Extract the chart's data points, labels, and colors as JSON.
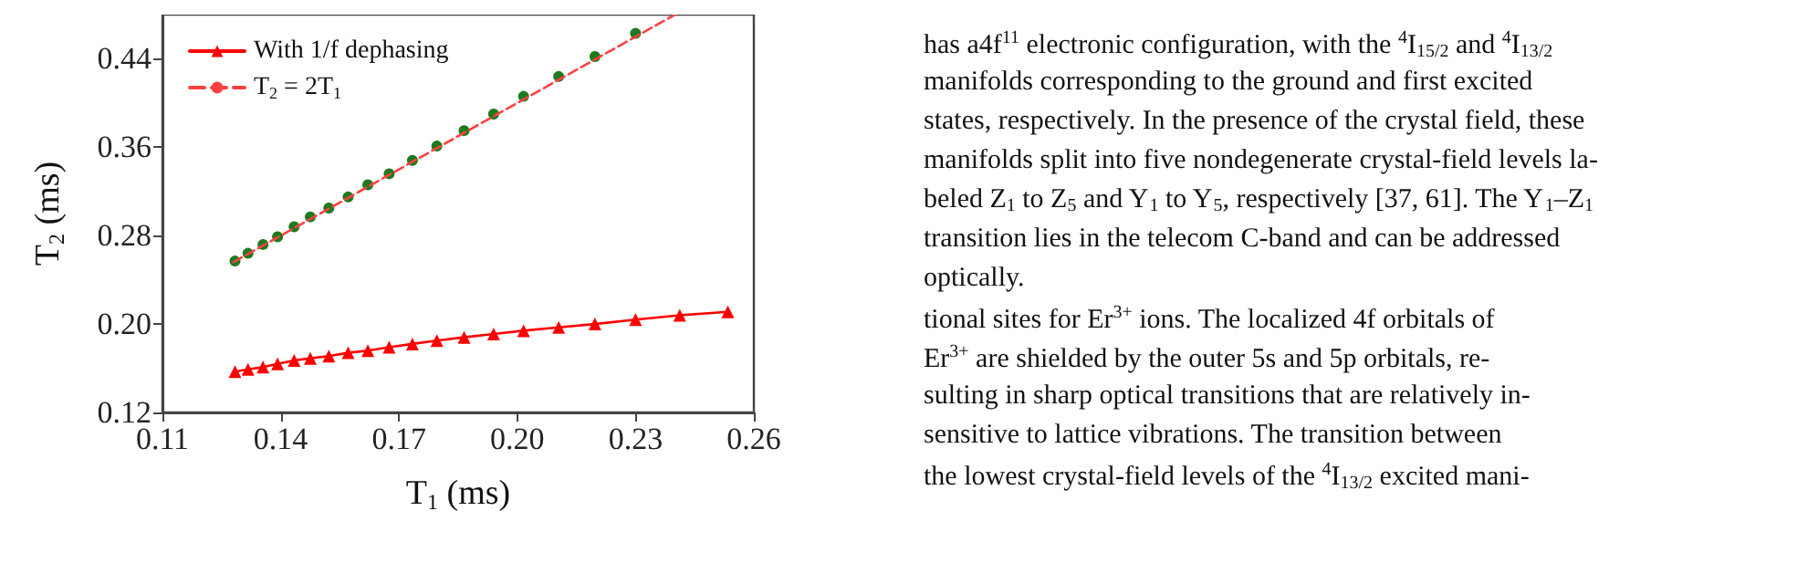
{
  "chart_data": {
    "type": "line",
    "xlabel": "T$_{1}$ (ms)",
    "ylabel": "T$_{2}$ (ms)",
    "xlim": [
      0.11,
      0.26
    ],
    "xticks": [
      0.11,
      0.14,
      0.17,
      {
        "value": 0.2,
        "label": "0.20"
      },
      0.23,
      0.26
    ],
    "ylim": [
      0.12,
      0.48
    ],
    "yticks": [
      0.12,
      {
        "value": 0.2,
        "label": "0.20"
      },
      0.28,
      0.36,
      0.44
    ],
    "grid": false,
    "legend": "top left",
    "series": [
      {
        "name": "With 1/f dephasing",
        "type": "line",
        "color": "#ff0000",
        "marker": "triangle",
        "line_style": "solid",
        "x": [
          0.1284,
          0.1317,
          0.1355,
          0.1392,
          0.1434,
          0.1475,
          0.1522,
          0.1571,
          0.1621,
          0.1675,
          0.1734,
          0.1796,
          0.1865,
          0.194,
          0.2016,
          0.2105,
          0.2197,
          0.23,
          0.2412,
          0.2534
        ],
        "values": [
          0.157,
          0.159,
          0.161,
          0.164,
          0.167,
          0.169,
          0.171,
          0.174,
          0.176,
          0.179,
          0.182,
          0.185,
          0.188,
          0.191,
          0.194,
          0.197,
          0.2,
          0.204,
          0.208,
          0.211
        ]
      },
      {
        "name": "T$_{2}$ = 2T$_{1}$",
        "type": "line",
        "color": "#ff4040",
        "marker": "none",
        "line_style": "dashed",
        "x": [
          0.128,
          0.24
        ],
        "values": [
          0.256,
          0.48
        ]
      },
      {
        "type": "scatter",
        "color": "#1f7a1f",
        "marker": "circle",
        "x": [
          0.1284,
          0.1317,
          0.1355,
          0.1392,
          0.1434,
          0.1475,
          0.1522,
          0.1571,
          0.1621,
          0.1675,
          0.1734,
          0.1796,
          0.1865,
          0.194,
          0.2016,
          0.2105,
          0.2197,
          0.23
        ],
        "values": [
          0.257,
          0.264,
          0.272,
          0.279,
          0.288,
          0.297,
          0.305,
          0.315,
          0.326,
          0.336,
          0.348,
          0.361,
          0.375,
          0.39,
          0.406,
          0.424,
          0.442,
          0.463
        ]
      }
    ],
    "annotations": [
      "has a4f$^{11}$ electronic configuration, with the $^{4}$I$_{15/2}$ and $^{4}$I$_{13/2}$",
      "manifolds corresponding to the ground and first excited",
      "states, respectively. In the presence of the crystal field, these",
      "manifolds split into five nondegenerate crystal-field levels la-",
      "beled Z$_{1}$ to Z$_{5}$ and Y$_{1}$ to Y$_{5}$, respectively [37, 61]. The Y$_{1}$–Z$_{1}$",
      "transition lies in the telecom C-band and can be addressed",
      "optically.",
      "tional sites for Er$^{3+}$ ions. The localized 4f orbitals of",
      "Er$^{3+}$ are shielded by the outer 5s and 5p orbitals, re-",
      "sulting in sharp optical transitions that are relatively in-",
      "sensitive to lattice vibrations. The transition between",
      "the lowest crystal-field levels of the $^{4}$I$_{13/2}$ excited mani-"
    ]
  }
}
